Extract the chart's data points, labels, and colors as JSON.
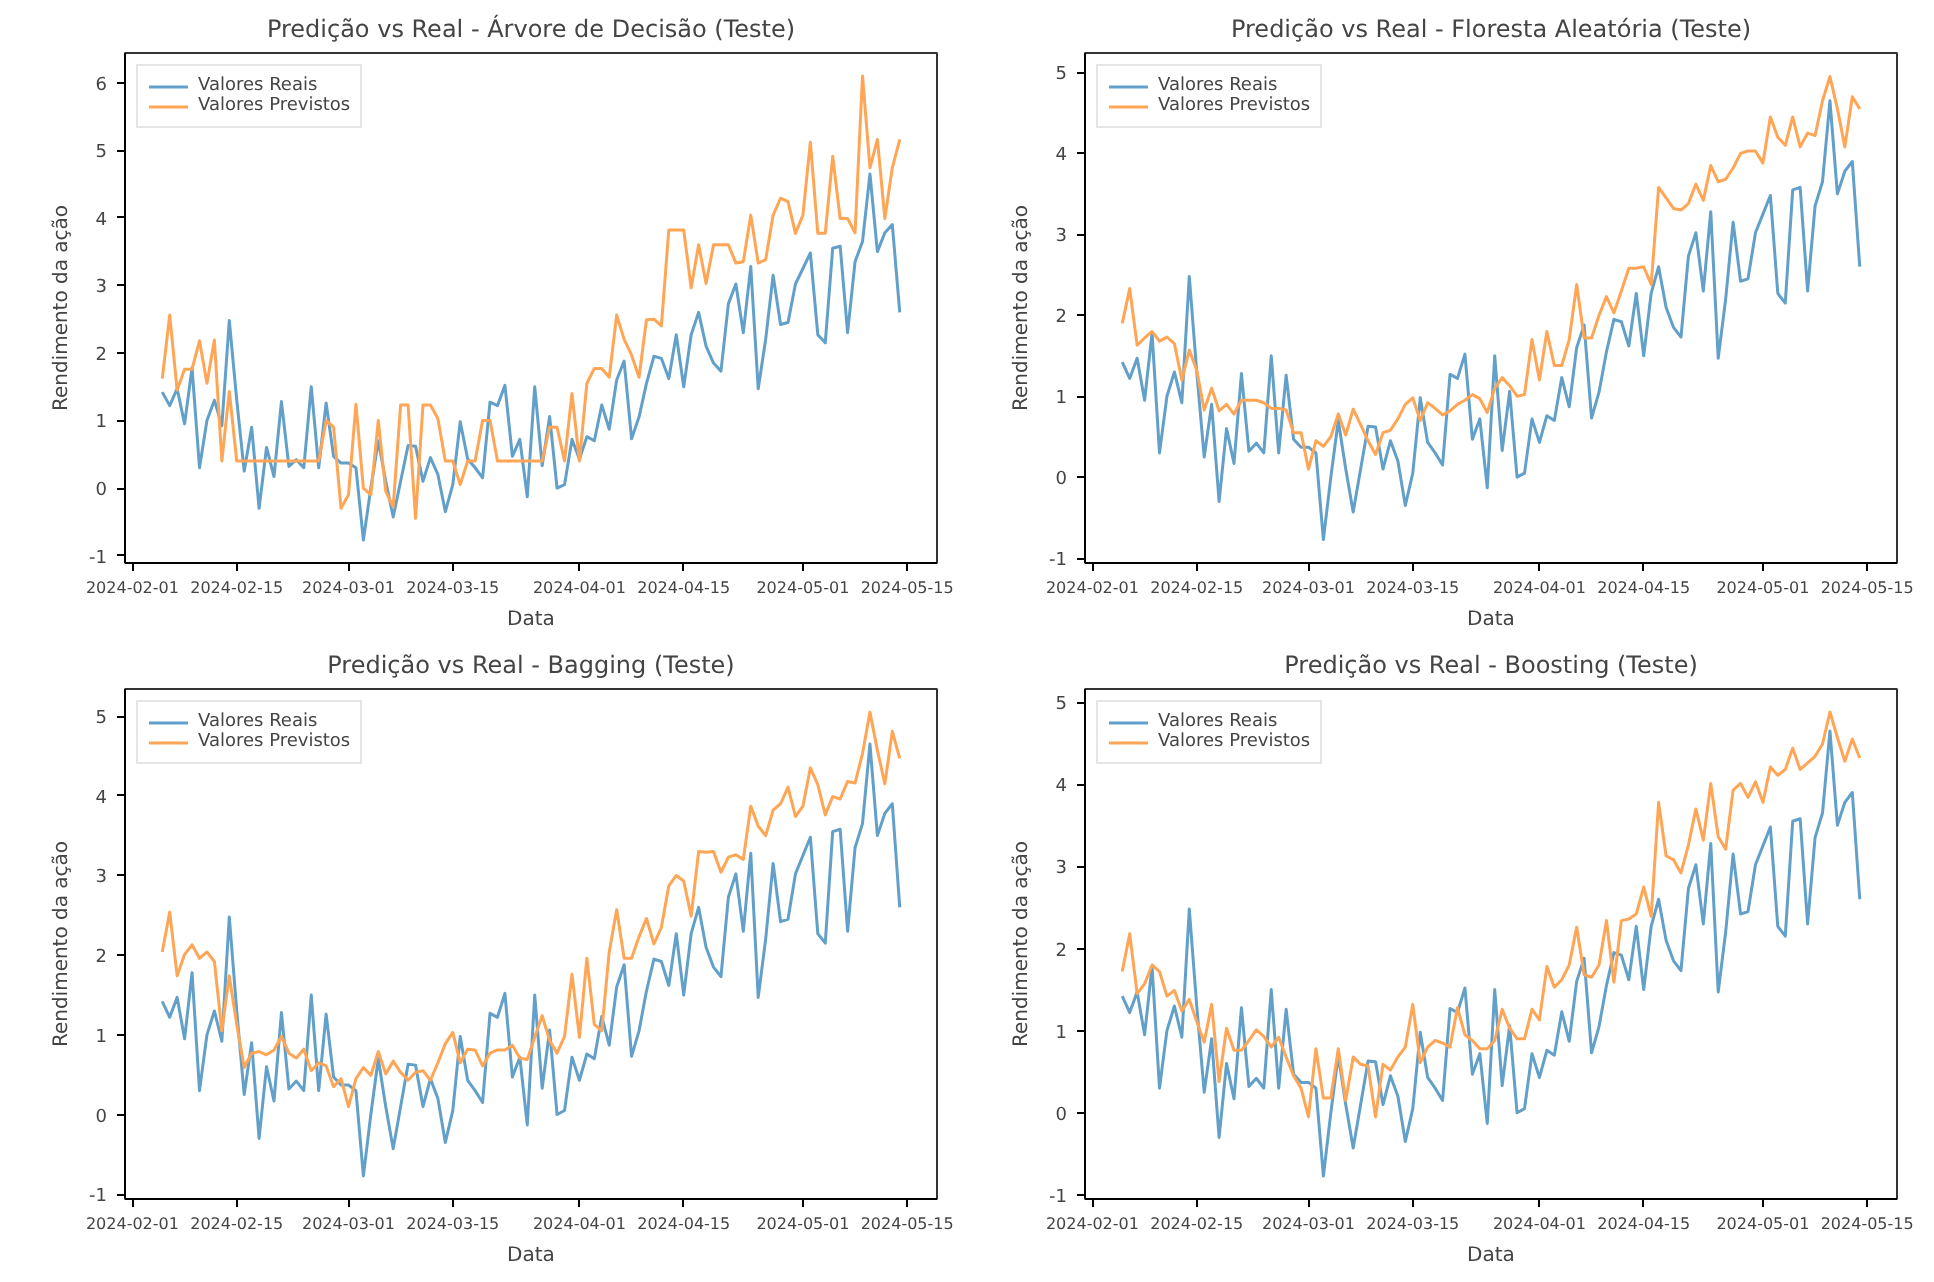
{
  "chart_data": [
    {
      "type": "line",
      "title": "Predição vs Real - Árvore de Decisão (Teste)",
      "xlabel": "Data",
      "ylabel": "Rendimento da ação",
      "legend": "top left",
      "grid": false,
      "x": [
        "2024-02-05",
        "2024-02-06",
        "2024-02-07",
        "2024-02-08",
        "2024-02-09",
        "2024-02-10",
        "2024-02-11",
        "2024-02-12",
        "2024-02-13",
        "2024-02-14",
        "2024-02-15",
        "2024-02-16",
        "2024-02-17",
        "2024-02-18",
        "2024-02-19",
        "2024-02-20",
        "2024-02-21",
        "2024-02-22",
        "2024-02-23",
        "2024-02-24",
        "2024-02-25",
        "2024-02-26",
        "2024-02-27",
        "2024-02-28",
        "2024-02-29",
        "2024-03-01",
        "2024-03-02",
        "2024-03-03",
        "2024-03-04",
        "2024-03-05",
        "2024-03-06",
        "2024-03-07",
        "2024-03-08",
        "2024-03-09",
        "2024-03-10",
        "2024-03-11",
        "2024-03-12",
        "2024-03-13",
        "2024-03-14",
        "2024-03-15",
        "2024-03-16",
        "2024-03-17",
        "2024-03-18",
        "2024-03-19",
        "2024-03-20",
        "2024-03-21",
        "2024-03-22",
        "2024-03-23",
        "2024-03-24",
        "2024-03-25",
        "2024-03-26",
        "2024-03-27",
        "2024-03-28",
        "2024-03-29",
        "2024-03-30",
        "2024-03-31",
        "2024-04-01",
        "2024-04-02",
        "2024-04-03",
        "2024-04-04",
        "2024-04-05",
        "2024-04-06",
        "2024-04-07",
        "2024-04-08",
        "2024-04-09",
        "2024-04-10",
        "2024-04-11",
        "2024-04-12",
        "2024-04-13",
        "2024-04-14",
        "2024-04-15",
        "2024-04-16",
        "2024-04-17",
        "2024-04-18",
        "2024-04-19",
        "2024-04-20",
        "2024-04-21",
        "2024-04-22",
        "2024-04-23",
        "2024-04-24",
        "2024-04-25",
        "2024-04-26",
        "2024-04-27",
        "2024-04-28",
        "2024-04-29",
        "2024-04-30",
        "2024-05-01",
        "2024-05-02",
        "2024-05-03",
        "2024-05-04",
        "2024-05-05",
        "2024-05-06",
        "2024-05-07",
        "2024-05-08",
        "2024-05-09",
        "2024-05-10",
        "2024-05-11",
        "2024-05-12",
        "2024-05-13",
        "2024-05-14"
      ],
      "xlim": [
        "2024-01-31",
        "2024-05-19"
      ],
      "xticks": [
        "2024-02-01",
        "2024-02-15",
        "2024-03-01",
        "2024-03-15",
        "2024-04-01",
        "2024-04-15",
        "2024-05-01",
        "2024-05-15"
      ],
      "ylim": [
        -1.11,
        6.44
      ],
      "yticks": [
        -1,
        0,
        1,
        2,
        3,
        4,
        5,
        6
      ],
      "series": [
        {
          "name": "Valores Reais",
          "color": "#62a0ca",
          "values": [
            1.42,
            1.22,
            1.47,
            0.95,
            1.78,
            0.3,
            1.0,
            1.3,
            0.92,
            2.48,
            1.3,
            0.25,
            0.9,
            -0.3,
            0.6,
            0.17,
            1.28,
            0.32,
            0.42,
            0.3,
            1.5,
            0.3,
            1.26,
            0.47,
            0.37,
            0.37,
            0.3,
            -0.77,
            0.0,
            0.7,
            0.1,
            -0.43,
            0.1,
            0.63,
            0.62,
            0.1,
            0.45,
            0.2,
            -0.35,
            0.05,
            0.98,
            0.43,
            0.3,
            0.15,
            1.27,
            1.22,
            1.52,
            0.47,
            0.72,
            -0.13,
            1.5,
            0.33,
            1.06,
            0.0,
            0.05,
            0.72,
            0.43,
            0.76,
            0.7,
            1.23,
            0.87,
            1.6,
            1.88,
            0.73,
            1.05,
            1.55,
            1.95,
            1.92,
            1.62,
            2.27,
            1.5,
            2.27,
            2.6,
            2.1,
            1.85,
            1.73,
            2.73,
            3.02,
            2.3,
            3.28,
            1.47,
            2.2,
            3.15,
            2.42,
            2.45,
            3.02,
            3.25,
            3.48,
            2.27,
            2.15,
            3.55,
            3.58,
            2.3,
            3.35,
            3.65,
            4.65,
            3.5,
            3.78,
            3.9,
            2.6
          ]
        },
        {
          "name": "Valores Previstos",
          "color": "#ffa556",
          "values": [
            1.62,
            2.56,
            1.45,
            1.76,
            1.76,
            2.18,
            1.55,
            2.19,
            0.4,
            1.43,
            0.4,
            0.4,
            0.4,
            0.4,
            0.4,
            0.4,
            0.4,
            0.4,
            0.4,
            0.4,
            0.4,
            0.4,
            1.0,
            0.9,
            -0.3,
            -0.1,
            1.24,
            0.0,
            -0.1,
            1.0,
            -0.05,
            -0.28,
            1.23,
            1.23,
            -0.45,
            1.23,
            1.23,
            1.03,
            0.4,
            0.4,
            0.05,
            0.4,
            0.4,
            1.0,
            1.0,
            0.4,
            0.4,
            0.4,
            0.4,
            0.4,
            0.4,
            0.4,
            0.9,
            0.9,
            0.4,
            1.4,
            0.4,
            1.55,
            1.77,
            1.77,
            1.64,
            2.56,
            2.2,
            1.97,
            1.64,
            2.49,
            2.5,
            2.4,
            3.82,
            3.82,
            3.82,
            2.96,
            3.6,
            3.03,
            3.6,
            3.6,
            3.6,
            3.33,
            3.35,
            4.04,
            3.33,
            3.38,
            4.04,
            4.29,
            4.24,
            3.77,
            4.04,
            5.12,
            3.77,
            3.77,
            4.91,
            3.99,
            3.99,
            3.78,
            6.1,
            4.74,
            5.16,
            3.99,
            4.74,
            5.16
          ]
        }
      ]
    },
    {
      "type": "line",
      "title": "Predição vs Real - Floresta Aleatória (Teste)",
      "xlabel": "Data",
      "ylabel": "Rendimento da ação",
      "legend": "top left",
      "grid": false,
      "x": [
        "2024-02-05",
        "2024-02-06",
        "2024-02-07",
        "2024-02-08",
        "2024-02-09",
        "2024-02-10",
        "2024-02-11",
        "2024-02-12",
        "2024-02-13",
        "2024-02-14",
        "2024-02-15",
        "2024-02-16",
        "2024-02-17",
        "2024-02-18",
        "2024-02-19",
        "2024-02-20",
        "2024-02-21",
        "2024-02-22",
        "2024-02-23",
        "2024-02-24",
        "2024-02-25",
        "2024-02-26",
        "2024-02-27",
        "2024-02-28",
        "2024-02-29",
        "2024-03-01",
        "2024-03-02",
        "2024-03-03",
        "2024-03-04",
        "2024-03-05",
        "2024-03-06",
        "2024-03-07",
        "2024-03-08",
        "2024-03-09",
        "2024-03-10",
        "2024-03-11",
        "2024-03-12",
        "2024-03-13",
        "2024-03-14",
        "2024-03-15",
        "2024-03-16",
        "2024-03-17",
        "2024-03-18",
        "2024-03-19",
        "2024-03-20",
        "2024-03-21",
        "2024-03-22",
        "2024-03-23",
        "2024-03-24",
        "2024-03-25",
        "2024-03-26",
        "2024-03-27",
        "2024-03-28",
        "2024-03-29",
        "2024-03-30",
        "2024-03-31",
        "2024-04-01",
        "2024-04-02",
        "2024-04-03",
        "2024-04-04",
        "2024-04-05",
        "2024-04-06",
        "2024-04-07",
        "2024-04-08",
        "2024-04-09",
        "2024-04-10",
        "2024-04-11",
        "2024-04-12",
        "2024-04-13",
        "2024-04-14",
        "2024-04-15",
        "2024-04-16",
        "2024-04-17",
        "2024-04-18",
        "2024-04-19",
        "2024-04-20",
        "2024-04-21",
        "2024-04-22",
        "2024-04-23",
        "2024-04-24",
        "2024-04-25",
        "2024-04-26",
        "2024-04-27",
        "2024-04-28",
        "2024-04-29",
        "2024-04-30",
        "2024-05-01",
        "2024-05-02",
        "2024-05-03",
        "2024-05-04",
        "2024-05-05",
        "2024-05-06",
        "2024-05-07",
        "2024-05-08",
        "2024-05-09",
        "2024-05-10",
        "2024-05-11",
        "2024-05-12",
        "2024-05-13",
        "2024-05-14"
      ],
      "xlim": [
        "2024-01-31",
        "2024-05-19"
      ],
      "xticks": [
        "2024-02-01",
        "2024-02-15",
        "2024-03-01",
        "2024-03-15",
        "2024-04-01",
        "2024-04-15",
        "2024-05-01",
        "2024-05-15"
      ],
      "ylim": [
        -1.06,
        5.24
      ],
      "yticks": [
        -1,
        0,
        1,
        2,
        3,
        4,
        5
      ],
      "series": [
        {
          "name": "Valores Reais",
          "color": "#62a0ca",
          "values": [
            1.42,
            1.22,
            1.47,
            0.95,
            1.78,
            0.3,
            1.0,
            1.3,
            0.92,
            2.48,
            1.3,
            0.25,
            0.9,
            -0.3,
            0.6,
            0.17,
            1.28,
            0.32,
            0.42,
            0.3,
            1.5,
            0.3,
            1.26,
            0.47,
            0.37,
            0.37,
            0.3,
            -0.77,
            0.0,
            0.7,
            0.1,
            -0.43,
            0.1,
            0.63,
            0.62,
            0.1,
            0.45,
            0.2,
            -0.35,
            0.05,
            0.98,
            0.43,
            0.3,
            0.15,
            1.27,
            1.22,
            1.52,
            0.47,
            0.72,
            -0.13,
            1.5,
            0.33,
            1.06,
            0.0,
            0.05,
            0.72,
            0.43,
            0.76,
            0.7,
            1.23,
            0.87,
            1.6,
            1.88,
            0.73,
            1.05,
            1.55,
            1.95,
            1.92,
            1.62,
            2.27,
            1.5,
            2.27,
            2.6,
            2.1,
            1.85,
            1.73,
            2.73,
            3.02,
            2.3,
            3.28,
            1.47,
            2.2,
            3.15,
            2.42,
            2.45,
            3.02,
            3.25,
            3.48,
            2.27,
            2.15,
            3.55,
            3.58,
            2.3,
            3.35,
            3.65,
            4.65,
            3.5,
            3.78,
            3.9,
            2.6
          ]
        },
        {
          "name": "Valores Previstos",
          "color": "#ffa556",
          "values": [
            1.9,
            2.33,
            1.63,
            1.72,
            1.8,
            1.68,
            1.73,
            1.65,
            1.2,
            1.57,
            1.32,
            0.83,
            1.1,
            0.82,
            0.9,
            0.78,
            0.95,
            0.95,
            0.95,
            0.92,
            0.85,
            0.85,
            0.83,
            0.55,
            0.55,
            0.1,
            0.45,
            0.38,
            0.5,
            0.78,
            0.52,
            0.84,
            0.65,
            0.45,
            0.28,
            0.55,
            0.58,
            0.72,
            0.9,
            0.98,
            0.7,
            0.92,
            0.85,
            0.77,
            0.82,
            0.9,
            0.95,
            1.02,
            0.97,
            0.8,
            1.1,
            1.23,
            1.13,
            1.0,
            1.02,
            1.7,
            1.2,
            1.8,
            1.38,
            1.38,
            1.7,
            2.38,
            1.72,
            1.72,
            2.0,
            2.23,
            2.03,
            2.3,
            2.58,
            2.58,
            2.6,
            2.38,
            3.58,
            3.45,
            3.32,
            3.3,
            3.38,
            3.62,
            3.42,
            3.85,
            3.65,
            3.68,
            3.82,
            4.0,
            4.03,
            4.03,
            3.88,
            4.45,
            4.2,
            4.1,
            4.45,
            4.08,
            4.25,
            4.22,
            4.65,
            4.95,
            4.55,
            4.08,
            4.7,
            4.55
          ]
        }
      ]
    },
    {
      "type": "line",
      "title": "Predição vs Real - Bagging (Teste)",
      "xlabel": "Data",
      "ylabel": "Rendimento da ação",
      "legend": "top left",
      "grid": false,
      "x": [
        "2024-02-05",
        "2024-02-06",
        "2024-02-07",
        "2024-02-08",
        "2024-02-09",
        "2024-02-10",
        "2024-02-11",
        "2024-02-12",
        "2024-02-13",
        "2024-02-14",
        "2024-02-15",
        "2024-02-16",
        "2024-02-17",
        "2024-02-18",
        "2024-02-19",
        "2024-02-20",
        "2024-02-21",
        "2024-02-22",
        "2024-02-23",
        "2024-02-24",
        "2024-02-25",
        "2024-02-26",
        "2024-02-27",
        "2024-02-28",
        "2024-02-29",
        "2024-03-01",
        "2024-03-02",
        "2024-03-03",
        "2024-03-04",
        "2024-03-05",
        "2024-03-06",
        "2024-03-07",
        "2024-03-08",
        "2024-03-09",
        "2024-03-10",
        "2024-03-11",
        "2024-03-12",
        "2024-03-13",
        "2024-03-14",
        "2024-03-15",
        "2024-03-16",
        "2024-03-17",
        "2024-03-18",
        "2024-03-19",
        "2024-03-20",
        "2024-03-21",
        "2024-03-22",
        "2024-03-23",
        "2024-03-24",
        "2024-03-25",
        "2024-03-26",
        "2024-03-27",
        "2024-03-28",
        "2024-03-29",
        "2024-03-30",
        "2024-03-31",
        "2024-04-01",
        "2024-04-02",
        "2024-04-03",
        "2024-04-04",
        "2024-04-05",
        "2024-04-06",
        "2024-04-07",
        "2024-04-08",
        "2024-04-09",
        "2024-04-10",
        "2024-04-11",
        "2024-04-12",
        "2024-04-13",
        "2024-04-14",
        "2024-04-15",
        "2024-04-16",
        "2024-04-17",
        "2024-04-18",
        "2024-04-19",
        "2024-04-20",
        "2024-04-21",
        "2024-04-22",
        "2024-04-23",
        "2024-04-24",
        "2024-04-25",
        "2024-04-26",
        "2024-04-27",
        "2024-04-28",
        "2024-04-29",
        "2024-04-30",
        "2024-05-01",
        "2024-05-02",
        "2024-05-03",
        "2024-05-04",
        "2024-05-05",
        "2024-05-06",
        "2024-05-07",
        "2024-05-08",
        "2024-05-09",
        "2024-05-10",
        "2024-05-11",
        "2024-05-12",
        "2024-05-13",
        "2024-05-14"
      ],
      "xlim": [
        "2024-01-31",
        "2024-05-19"
      ],
      "xticks": [
        "2024-02-01",
        "2024-02-15",
        "2024-03-01",
        "2024-03-15",
        "2024-04-01",
        "2024-04-15",
        "2024-05-01",
        "2024-05-15"
      ],
      "ylim": [
        -1.06,
        5.34
      ],
      "yticks": [
        -1,
        0,
        1,
        2,
        3,
        4,
        5
      ],
      "series": [
        {
          "name": "Valores Reais",
          "color": "#62a0ca",
          "values": [
            1.42,
            1.22,
            1.47,
            0.95,
            1.78,
            0.3,
            1.0,
            1.3,
            0.92,
            2.48,
            1.3,
            0.25,
            0.9,
            -0.3,
            0.6,
            0.17,
            1.28,
            0.32,
            0.42,
            0.3,
            1.5,
            0.3,
            1.26,
            0.47,
            0.37,
            0.37,
            0.3,
            -0.77,
            0.0,
            0.7,
            0.1,
            -0.43,
            0.1,
            0.63,
            0.62,
            0.1,
            0.45,
            0.2,
            -0.35,
            0.05,
            0.98,
            0.43,
            0.3,
            0.15,
            1.27,
            1.22,
            1.52,
            0.47,
            0.72,
            -0.13,
            1.5,
            0.33,
            1.06,
            0.0,
            0.05,
            0.72,
            0.43,
            0.76,
            0.7,
            1.23,
            0.87,
            1.6,
            1.88,
            0.73,
            1.05,
            1.55,
            1.95,
            1.92,
            1.62,
            2.27,
            1.5,
            2.27,
            2.6,
            2.1,
            1.85,
            1.73,
            2.73,
            3.02,
            2.3,
            3.28,
            1.47,
            2.2,
            3.15,
            2.42,
            2.45,
            3.02,
            3.25,
            3.48,
            2.27,
            2.15,
            3.55,
            3.58,
            2.3,
            3.35,
            3.65,
            4.65,
            3.5,
            3.78,
            3.9,
            2.6
          ]
        },
        {
          "name": "Valores Previstos",
          "color": "#ffa556",
          "values": [
            2.04,
            2.54,
            1.74,
            2.01,
            2.13,
            1.96,
            2.04,
            1.92,
            1.05,
            1.74,
            1.13,
            0.59,
            0.77,
            0.79,
            0.75,
            0.81,
            0.98,
            0.77,
            0.71,
            0.82,
            0.55,
            0.65,
            0.61,
            0.35,
            0.45,
            0.1,
            0.45,
            0.59,
            0.49,
            0.79,
            0.51,
            0.67,
            0.53,
            0.43,
            0.53,
            0.55,
            0.43,
            0.65,
            0.89,
            1.03,
            0.65,
            0.82,
            0.81,
            0.61,
            0.77,
            0.81,
            0.81,
            0.87,
            0.71,
            0.69,
            0.97,
            1.24,
            0.93,
            0.77,
            0.98,
            1.76,
            0.97,
            1.96,
            1.13,
            1.05,
            2.04,
            2.57,
            1.96,
            1.96,
            2.23,
            2.46,
            2.14,
            2.35,
            2.87,
            3.0,
            2.93,
            2.49,
            3.3,
            3.29,
            3.3,
            3.04,
            3.23,
            3.26,
            3.2,
            3.87,
            3.62,
            3.5,
            3.82,
            3.9,
            4.11,
            3.74,
            3.87,
            4.35,
            4.14,
            3.76,
            3.99,
            3.96,
            4.18,
            4.16,
            4.53,
            5.05,
            4.57,
            4.15,
            4.81,
            4.47
          ]
        }
      ]
    },
    {
      "type": "line",
      "title": "Predição vs Real - Boosting (Teste)",
      "xlabel": "Data",
      "ylabel": "Rendimento da ação",
      "legend": "top left",
      "grid": false,
      "x": [
        "2024-02-05",
        "2024-02-06",
        "2024-02-07",
        "2024-02-08",
        "2024-02-09",
        "2024-02-10",
        "2024-02-11",
        "2024-02-12",
        "2024-02-13",
        "2024-02-14",
        "2024-02-15",
        "2024-02-16",
        "2024-02-17",
        "2024-02-18",
        "2024-02-19",
        "2024-02-20",
        "2024-02-21",
        "2024-02-22",
        "2024-02-23",
        "2024-02-24",
        "2024-02-25",
        "2024-02-26",
        "2024-02-27",
        "2024-02-28",
        "2024-02-29",
        "2024-03-01",
        "2024-03-02",
        "2024-03-03",
        "2024-03-04",
        "2024-03-05",
        "2024-03-06",
        "2024-03-07",
        "2024-03-08",
        "2024-03-09",
        "2024-03-10",
        "2024-03-11",
        "2024-03-12",
        "2024-03-13",
        "2024-03-14",
        "2024-03-15",
        "2024-03-16",
        "2024-03-17",
        "2024-03-18",
        "2024-03-19",
        "2024-03-20",
        "2024-03-21",
        "2024-03-22",
        "2024-03-23",
        "2024-03-24",
        "2024-03-25",
        "2024-03-26",
        "2024-03-27",
        "2024-03-28",
        "2024-03-29",
        "2024-03-30",
        "2024-03-31",
        "2024-04-01",
        "2024-04-02",
        "2024-04-03",
        "2024-04-04",
        "2024-04-05",
        "2024-04-06",
        "2024-04-07",
        "2024-04-08",
        "2024-04-09",
        "2024-04-10",
        "2024-04-11",
        "2024-04-12",
        "2024-04-13",
        "2024-04-14",
        "2024-04-15",
        "2024-04-16",
        "2024-04-17",
        "2024-04-18",
        "2024-04-19",
        "2024-04-20",
        "2024-04-21",
        "2024-04-22",
        "2024-04-23",
        "2024-04-24",
        "2024-04-25",
        "2024-04-26",
        "2024-04-27",
        "2024-04-28",
        "2024-04-29",
        "2024-04-30",
        "2024-05-01",
        "2024-05-02",
        "2024-05-03",
        "2024-05-04",
        "2024-05-05",
        "2024-05-06",
        "2024-05-07",
        "2024-05-08",
        "2024-05-09",
        "2024-05-10",
        "2024-05-11",
        "2024-05-12",
        "2024-05-13",
        "2024-05-14"
      ],
      "xlim": [
        "2024-01-31",
        "2024-05-19"
      ],
      "xticks": [
        "2024-02-01",
        "2024-02-15",
        "2024-03-01",
        "2024-03-15",
        "2024-04-01",
        "2024-04-15",
        "2024-05-01",
        "2024-05-15"
      ],
      "ylim": [
        -1.05,
        5.16
      ],
      "yticks": [
        -1,
        0,
        1,
        2,
        3,
        4,
        5
      ],
      "series": [
        {
          "name": "Valores Reais",
          "color": "#62a0ca",
          "values": [
            1.42,
            1.22,
            1.47,
            0.95,
            1.78,
            0.3,
            1.0,
            1.3,
            0.92,
            2.48,
            1.3,
            0.25,
            0.9,
            -0.3,
            0.6,
            0.17,
            1.28,
            0.32,
            0.42,
            0.3,
            1.5,
            0.3,
            1.26,
            0.47,
            0.37,
            0.37,
            0.3,
            -0.77,
            0.0,
            0.7,
            0.1,
            -0.43,
            0.1,
            0.63,
            0.62,
            0.1,
            0.45,
            0.2,
            -0.35,
            0.05,
            0.98,
            0.43,
            0.3,
            0.15,
            1.27,
            1.22,
            1.52,
            0.47,
            0.72,
            -0.13,
            1.5,
            0.33,
            1.06,
            0.0,
            0.05,
            0.72,
            0.43,
            0.76,
            0.7,
            1.23,
            0.87,
            1.6,
            1.88,
            0.73,
            1.05,
            1.55,
            1.95,
            1.92,
            1.62,
            2.27,
            1.5,
            2.27,
            2.6,
            2.1,
            1.85,
            1.73,
            2.73,
            3.02,
            2.3,
            3.28,
            1.47,
            2.2,
            3.15,
            2.42,
            2.45,
            3.02,
            3.25,
            3.48,
            2.27,
            2.15,
            3.55,
            3.58,
            2.3,
            3.35,
            3.65,
            4.65,
            3.5,
            3.78,
            3.9,
            2.6
          ]
        },
        {
          "name": "Valores Previstos",
          "color": "#ffa556",
          "values": [
            1.72,
            2.18,
            1.45,
            1.57,
            1.8,
            1.72,
            1.42,
            1.49,
            1.24,
            1.38,
            1.11,
            0.86,
            1.32,
            0.38,
            1.03,
            0.76,
            0.76,
            0.88,
            1.01,
            0.93,
            0.8,
            0.92,
            0.68,
            0.45,
            0.3,
            -0.05,
            0.78,
            0.18,
            0.18,
            0.78,
            0.15,
            0.68,
            0.59,
            0.57,
            -0.05,
            0.59,
            0.52,
            0.68,
            0.8,
            1.32,
            0.61,
            0.8,
            0.88,
            0.85,
            0.8,
            1.28,
            0.95,
            0.88,
            0.78,
            0.78,
            0.88,
            1.26,
            1.03,
            0.9,
            0.9,
            1.26,
            1.13,
            1.78,
            1.53,
            1.62,
            1.8,
            2.26,
            1.68,
            1.65,
            1.8,
            2.34,
            1.59,
            2.34,
            2.36,
            2.42,
            2.75,
            2.39,
            3.78,
            3.13,
            3.08,
            2.92,
            3.26,
            3.7,
            3.32,
            4.01,
            3.36,
            3.21,
            3.93,
            4.01,
            3.84,
            4.03,
            3.78,
            4.21,
            4.11,
            4.18,
            4.44,
            4.18,
            4.26,
            4.34,
            4.49,
            4.88,
            4.57,
            4.28,
            4.55,
            4.32
          ]
        }
      ]
    }
  ]
}
